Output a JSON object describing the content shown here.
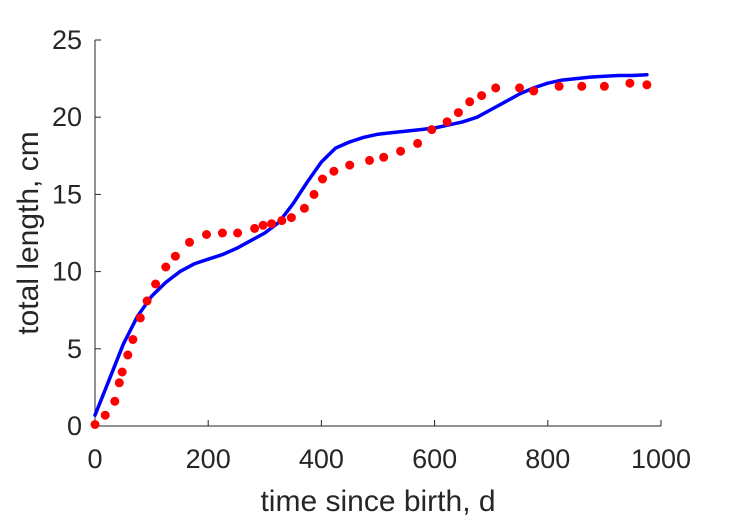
{
  "chart_data": {
    "type": "scatter",
    "title": "",
    "xlabel": "time since birth, d",
    "ylabel": "total length, cm",
    "xlim": [
      0,
      1000
    ],
    "ylim": [
      0,
      25
    ],
    "xticks": [
      0,
      200,
      400,
      600,
      800,
      1000
    ],
    "yticks": [
      0,
      5,
      10,
      15,
      20,
      25
    ],
    "xtick_labels": [
      "0",
      "200",
      "400",
      "600",
      "800",
      "1000"
    ],
    "ytick_labels": [
      "0",
      "5",
      "10",
      "15",
      "20",
      "25"
    ],
    "grid": false,
    "series": [
      {
        "kind": "scatter",
        "color": "#ff0000",
        "x": [
          0,
          18,
          35,
          43,
          48,
          58,
          67,
          80,
          92,
          107,
          125,
          142,
          167,
          197,
          225,
          252,
          282,
          297,
          312,
          330,
          347,
          370,
          387,
          402,
          422,
          450,
          485,
          510,
          540,
          570,
          595,
          622,
          642,
          662,
          683,
          708,
          750,
          775,
          820,
          860,
          900,
          945,
          975
        ],
        "y": [
          0.1,
          0.7,
          1.6,
          2.8,
          3.5,
          4.6,
          5.6,
          7.0,
          8.1,
          9.2,
          10.3,
          11.0,
          11.9,
          12.4,
          12.5,
          12.5,
          12.8,
          13.0,
          13.1,
          13.3,
          13.5,
          14.1,
          15.0,
          16.0,
          16.5,
          16.9,
          17.2,
          17.4,
          17.8,
          18.3,
          19.2,
          19.7,
          20.3,
          21.0,
          21.4,
          21.9,
          21.9,
          21.7,
          22.0,
          22.0,
          22.0,
          22.2,
          22.1
        ]
      },
      {
        "kind": "line",
        "color": "#0000ff",
        "x": [
          0,
          25,
          50,
          75,
          100,
          125,
          150,
          175,
          200,
          225,
          250,
          275,
          300,
          325,
          350,
          375,
          400,
          425,
          450,
          475,
          500,
          525,
          550,
          575,
          600,
          625,
          650,
          675,
          700,
          725,
          750,
          775,
          800,
          825,
          850,
          875,
          900,
          925,
          950,
          975
        ],
        "y": [
          0.7,
          3.0,
          5.3,
          7.1,
          8.4,
          9.3,
          10.0,
          10.5,
          10.8,
          11.1,
          11.5,
          12.0,
          12.5,
          13.2,
          14.4,
          15.8,
          17.1,
          18.0,
          18.4,
          18.7,
          18.9,
          19.0,
          19.1,
          19.2,
          19.3,
          19.5,
          19.7,
          20.0,
          20.5,
          21.0,
          21.5,
          21.9,
          22.2,
          22.4,
          22.5,
          22.6,
          22.65,
          22.7,
          22.7,
          22.75
        ]
      }
    ]
  }
}
